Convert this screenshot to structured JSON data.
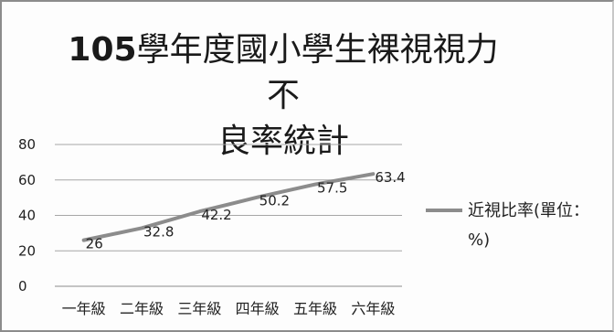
{
  "chart_data": {
    "type": "line",
    "title_part1": "105",
    "title_part2": "學年度國小學生裸視視力不",
    "title_part3": "良率統計",
    "categories": [
      "一年級",
      "二年級",
      "三年級",
      "四年級",
      "五年級",
      "六年級"
    ],
    "series": [
      {
        "name": "近視比率(單位：%)",
        "values": [
          26,
          32.8,
          42.2,
          50.2,
          57.5,
          63.4
        ],
        "color": "#8c8c8c"
      }
    ],
    "ylim": [
      0,
      80
    ],
    "yticks": [
      0,
      20,
      40,
      60,
      80
    ],
    "grid": true,
    "legend": "right"
  }
}
